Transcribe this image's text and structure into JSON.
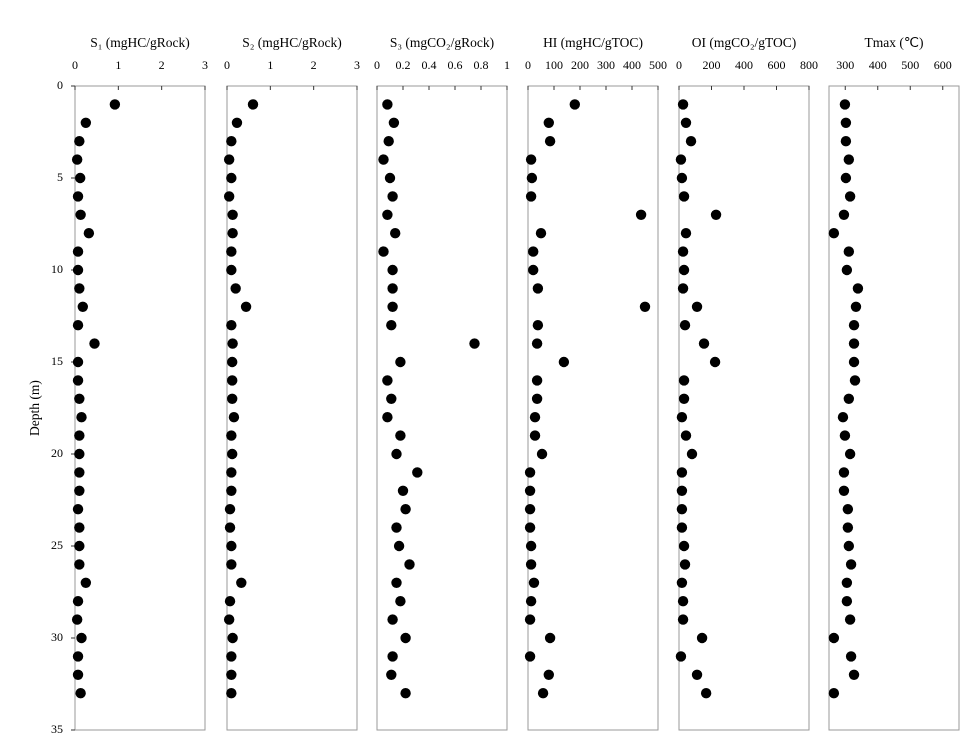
{
  "chart_data": [
    {
      "type": "scatter",
      "title": "S₁ (mgHC/gRock)",
      "ylabel": "Depth (m)",
      "color": "#000000",
      "xlim": [
        0,
        3
      ],
      "xticks": [
        0,
        1,
        2,
        3
      ],
      "ylim": [
        0,
        35
      ],
      "yticks": [
        0,
        5,
        10,
        15,
        20,
        25,
        30,
        35
      ],
      "y_inverted": true,
      "x": [
        0.92,
        0.25,
        0.1,
        0.05,
        0.12,
        0.07,
        0.13,
        0.32,
        0.07,
        0.07,
        0.1,
        0.18,
        0.07,
        0.45,
        0.07,
        0.07,
        0.1,
        0.15,
        0.1,
        0.1,
        0.1,
        0.1,
        0.07,
        0.1,
        0.1,
        0.1,
        0.25,
        0.07,
        0.05,
        0.15,
        0.07,
        0.07,
        0.13
      ],
      "y": [
        1,
        2,
        3,
        4,
        5,
        6,
        7,
        8,
        9,
        10,
        11,
        12,
        13,
        14,
        15,
        16,
        17,
        18,
        19,
        20,
        21,
        22,
        23,
        24,
        25,
        26,
        27,
        28,
        29,
        30,
        31,
        32,
        33
      ]
    },
    {
      "type": "scatter",
      "title": "S₂ (mgHC/gRock)",
      "color": "#000000",
      "xlim": [
        0,
        3
      ],
      "xticks": [
        0,
        1,
        2,
        3
      ],
      "ylim": [
        0,
        35
      ],
      "y_inverted": true,
      "x": [
        0.6,
        0.23,
        0.1,
        0.05,
        0.1,
        0.05,
        0.13,
        0.13,
        0.1,
        0.1,
        0.2,
        0.44,
        0.1,
        0.13,
        0.12,
        0.12,
        0.12,
        0.16,
        0.1,
        0.12,
        0.1,
        0.1,
        0.07,
        0.07,
        0.1,
        0.1,
        0.33,
        0.07,
        0.05,
        0.13,
        0.1,
        0.1,
        0.1
      ],
      "y": [
        1,
        2,
        3,
        4,
        5,
        6,
        7,
        8,
        9,
        10,
        11,
        12,
        13,
        14,
        15,
        16,
        17,
        18,
        19,
        20,
        21,
        22,
        23,
        24,
        25,
        26,
        27,
        28,
        29,
        30,
        31,
        32,
        33
      ]
    },
    {
      "type": "scatter",
      "title": "S₃ (mgCO₂/gRock)",
      "color": "#000000",
      "xlim": [
        0,
        1
      ],
      "xticks": [
        0,
        0.2,
        0.4,
        0.6,
        0.8,
        1
      ],
      "ylim": [
        0,
        35
      ],
      "y_inverted": true,
      "x": [
        0.08,
        0.13,
        0.09,
        0.05,
        0.1,
        0.12,
        0.08,
        0.14,
        0.05,
        0.12,
        0.12,
        0.12,
        0.11,
        0.75,
        0.18,
        0.08,
        0.11,
        0.08,
        0.18,
        0.15,
        0.31,
        0.2,
        0.22,
        0.15,
        0.17,
        0.25,
        0.15,
        0.18,
        0.12,
        0.22,
        0.12,
        0.11,
        0.22
      ],
      "y": [
        1,
        2,
        3,
        4,
        5,
        6,
        7,
        8,
        9,
        10,
        11,
        12,
        13,
        14,
        15,
        16,
        17,
        18,
        19,
        20,
        21,
        22,
        23,
        24,
        25,
        26,
        27,
        28,
        29,
        30,
        31,
        32,
        33
      ]
    },
    {
      "type": "scatter",
      "title": "HI (mgHC/gTOC)",
      "color": "#000000",
      "xlim": [
        0,
        500
      ],
      "xticks": [
        0,
        100,
        200,
        300,
        400,
        500
      ],
      "ylim": [
        0,
        35
      ],
      "y_inverted": true,
      "x": [
        180,
        80,
        85,
        12,
        15,
        12,
        435,
        50,
        20,
        20,
        38,
        450,
        38,
        35,
        138,
        35,
        35,
        27,
        27,
        54,
        8,
        8,
        8,
        8,
        12,
        12,
        23,
        12,
        8,
        85,
        8,
        80,
        58
      ],
      "y": [
        1,
        2,
        3,
        4,
        5,
        6,
        7,
        8,
        9,
        10,
        11,
        12,
        13,
        14,
        15,
        16,
        17,
        18,
        19,
        20,
        21,
        22,
        23,
        24,
        25,
        26,
        27,
        28,
        29,
        30,
        31,
        32,
        33
      ]
    },
    {
      "type": "scatter",
      "title": "OI (mgCO₂/gTOC)",
      "color": "#000000",
      "xlim": [
        0,
        800
      ],
      "xticks": [
        0,
        200,
        400,
        600,
        800
      ],
      "ylim": [
        0,
        35
      ],
      "y_inverted": true,
      "x": [
        25,
        43,
        74,
        12,
        18,
        31,
        228,
        43,
        25,
        31,
        25,
        111,
        37,
        154,
        222,
        31,
        31,
        18,
        43,
        80,
        18,
        18,
        18,
        18,
        31,
        37,
        18,
        25,
        25,
        142,
        12,
        111,
        167
      ],
      "y": [
        1,
        2,
        3,
        4,
        5,
        6,
        7,
        8,
        9,
        10,
        11,
        12,
        13,
        14,
        15,
        16,
        17,
        18,
        19,
        20,
        21,
        22,
        23,
        24,
        25,
        26,
        27,
        28,
        29,
        30,
        31,
        32,
        33
      ]
    },
    {
      "type": "scatter",
      "title": "Tmax (℃)",
      "color": "#000000",
      "xlim": [
        250,
        650
      ],
      "xticks": [
        300,
        400,
        500,
        600
      ],
      "ylim": [
        0,
        35
      ],
      "y_inverted": true,
      "x": [
        299,
        302,
        302,
        311,
        302,
        315,
        296,
        265,
        311,
        305,
        339,
        333,
        327,
        327,
        327,
        330,
        311,
        293,
        299,
        315,
        296,
        296,
        308,
        308,
        311,
        318,
        305,
        305,
        315,
        265,
        318,
        327,
        265
      ],
      "y": [
        1,
        2,
        3,
        4,
        5,
        6,
        7,
        8,
        9,
        10,
        11,
        12,
        13,
        14,
        15,
        16,
        17,
        18,
        19,
        20,
        21,
        22,
        23,
        24,
        25,
        26,
        27,
        28,
        29,
        30,
        31,
        32,
        33
      ]
    }
  ]
}
